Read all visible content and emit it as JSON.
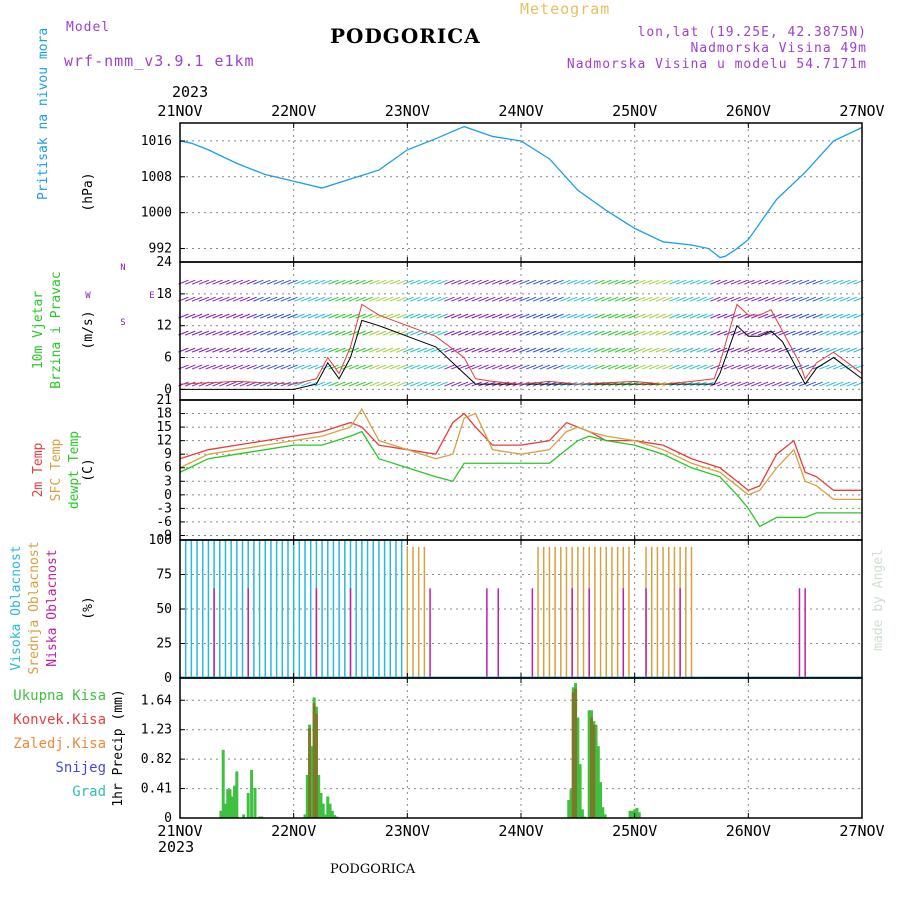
{
  "header": {
    "model_label": "Model",
    "model_name": "wrf-nmm_v3.9.1 e1km",
    "meteogram": "Meteogram",
    "station": "PODGORICA",
    "coords": "lon,lat (19.25E, 42.3875N)",
    "elevation": "Nadmorska Visina 49m",
    "model_elevation": "Nadmorska Visina u modelu 54.7171m",
    "year": "2023",
    "footer_station": "PODGORICA",
    "credit": "made by Angel"
  },
  "colors": {
    "pressure": "#1aa0e8",
    "temp2m": "#e83c3c",
    "sfc_temp": "#d8a040",
    "dewpt": "#28c828",
    "high_cloud": "#28b8e0",
    "mid_cloud": "#d8a040",
    "low_cloud": "#c020a0",
    "total_precip": "#40c040",
    "conv_precip": "#e84040",
    "frozen_precip": "#f08838",
    "snow": "#4848e0",
    "graupel": "#30c0b0",
    "wind": "#8020c0"
  },
  "chart_data": [
    {
      "type": "line",
      "panel": "pressure",
      "ylabel_side": "Pritisak na nivou mora",
      "ylabel": "(hPa)",
      "x_ticks": [
        "21NOV",
        "22NOV",
        "23NOV",
        "24NOV",
        "25NOV",
        "26NOV",
        "27NOV"
      ],
      "yticks": [
        992,
        1000,
        1008,
        1016
      ],
      "ylim": [
        989,
        1020
      ],
      "grid": true,
      "x_days": [
        0,
        0.1,
        0.25,
        0.5,
        0.75,
        1.0,
        1.25,
        1.5,
        1.75,
        2.0,
        2.25,
        2.5,
        2.75,
        3.0,
        3.25,
        3.5,
        3.75,
        4.0,
        4.25,
        4.5,
        4.65,
        4.75,
        4.8,
        4.9,
        5.0,
        5.25,
        5.5,
        5.75,
        6.0
      ],
      "series": [
        {
          "values": [
            1016,
            1015.5,
            1014,
            1011,
            1008.5,
            1007,
            1005.5,
            1007.5,
            1009.5,
            1014,
            1016.5,
            1019.2,
            1017,
            1016,
            1012,
            1005,
            1000.5,
            996.5,
            993.5,
            992.8,
            992,
            990,
            990.3,
            992,
            994,
            1003,
            1009,
            1016,
            1019
          ]
        }
      ]
    },
    {
      "type": "line",
      "panel": "wind",
      "ylabel_side": [
        "10m Vjetar",
        "Brzina i Pravac"
      ],
      "ylabel": "(m/s)",
      "compass": [
        "N",
        "E",
        "W",
        "S"
      ],
      "yticks": [
        0,
        6,
        12,
        18,
        24
      ],
      "ylim": [
        -2,
        24
      ],
      "x_days": [
        0,
        0.5,
        1.0,
        1.2,
        1.3,
        1.4,
        1.5,
        1.6,
        1.75,
        2.0,
        2.25,
        2.5,
        2.6,
        2.75,
        3.0,
        3.25,
        3.5,
        4.0,
        4.25,
        4.5,
        4.7,
        4.75,
        4.9,
        5.0,
        5.1,
        5.2,
        5.3,
        5.45,
        5.5,
        5.6,
        5.75,
        6.0
      ],
      "series": [
        {
          "values": [
            0,
            0,
            0,
            1,
            5,
            2,
            6,
            13,
            12,
            10,
            8,
            3,
            1,
            1,
            1,
            1,
            1,
            1,
            1,
            1,
            1,
            3,
            12,
            10,
            10,
            11,
            9,
            3,
            1,
            4,
            6,
            2
          ]
        },
        {
          "values": [
            1,
            1.5,
            1,
            2,
            6,
            3,
            8,
            16,
            14,
            12,
            10,
            6,
            2,
            1.5,
            1,
            1.5,
            1,
            1.5,
            1,
            1.5,
            2,
            5,
            16,
            14,
            14,
            15,
            11,
            5,
            2,
            5,
            7,
            3
          ]
        }
      ]
    },
    {
      "type": "line",
      "panel": "temperature",
      "ylabel_side": [
        "2m Temp",
        "SFC Temp",
        "dewpt Temp"
      ],
      "ylabel": "(C)",
      "yticks": [
        -9,
        -6,
        -3,
        0,
        3,
        6,
        9,
        12,
        15,
        18,
        21
      ],
      "ylim": [
        -10,
        21
      ],
      "x_days": [
        0,
        0.25,
        0.5,
        0.75,
        1.0,
        1.25,
        1.5,
        1.6,
        1.75,
        2.0,
        2.25,
        2.4,
        2.5,
        2.6,
        2.75,
        3.0,
        3.25,
        3.4,
        3.5,
        3.6,
        3.75,
        4.0,
        4.25,
        4.5,
        4.75,
        4.9,
        5.0,
        5.1,
        5.25,
        5.4,
        5.5,
        5.6,
        5.75,
        6.0
      ],
      "series": [
        {
          "name": "2m Temp",
          "values": [
            8,
            10,
            11,
            12,
            13,
            14,
            16,
            15,
            11,
            10,
            9,
            16,
            18,
            15,
            11,
            11,
            12,
            16,
            15,
            14,
            12,
            12,
            11,
            8,
            6,
            3,
            1,
            2,
            9,
            12,
            5,
            4,
            1,
            1
          ]
        },
        {
          "name": "SFC Temp",
          "values": [
            6,
            9,
            10,
            11,
            12,
            13,
            15,
            19,
            12,
            10,
            8,
            9,
            17,
            18,
            10,
            9,
            10,
            14,
            15,
            14,
            13,
            12,
            10,
            7,
            5,
            2,
            0,
            1,
            6,
            10,
            3,
            2,
            -1,
            -1
          ]
        },
        {
          "name": "dewpt Temp",
          "values": [
            5,
            8,
            9,
            10,
            11,
            11,
            13,
            14,
            8,
            6,
            4,
            3,
            7,
            7,
            7,
            7,
            7,
            10,
            12,
            13,
            12,
            11,
            9,
            6,
            4,
            0,
            -3,
            -7,
            -5,
            -5,
            -5,
            -4,
            -4,
            -4
          ]
        }
      ]
    },
    {
      "type": "bar",
      "panel": "cloud",
      "ylabel_side": [
        "Visoka Oblacnost",
        "Srednja Oblacnost",
        "Niska Oblacnost"
      ],
      "ylabel": "(%)",
      "yticks": [
        0,
        25,
        50,
        75,
        100
      ],
      "ylim": [
        0,
        100
      ],
      "series": [
        {
          "name": "Visoka Oblacnost",
          "days": [
            0.05,
            0.1,
            0.15,
            0.2,
            0.25,
            0.3,
            0.35,
            0.4,
            0.45,
            0.5,
            0.55,
            0.6,
            0.65,
            0.7,
            0.75,
            0.8,
            0.85,
            0.9,
            0.95,
            1.0,
            1.05,
            1.1,
            1.15,
            1.2,
            1.25,
            1.3,
            1.35,
            1.4,
            1.45,
            1.5,
            1.55,
            1.6,
            1.65,
            1.7,
            1.75,
            1.8,
            1.85,
            1.9,
            1.95
          ],
          "value": 100
        },
        {
          "name": "Srednja Oblacnost",
          "days": [
            2.0,
            2.05,
            2.1,
            2.15,
            3.15,
            3.2,
            3.25,
            3.3,
            3.35,
            3.4,
            3.45,
            3.5,
            3.55,
            3.6,
            3.65,
            3.7,
            3.75,
            3.8,
            3.85,
            3.9,
            3.95,
            4.1,
            4.15,
            4.2,
            4.25,
            4.3,
            4.35,
            4.4,
            4.45,
            4.5
          ],
          "value": 95
        },
        {
          "name": "Niska Oblacnost",
          "days": [
            0.3,
            0.6,
            1.2,
            1.5,
            2.2,
            2.7,
            2.8,
            3.1,
            3.45,
            3.6,
            3.9,
            4.1,
            4.4,
            5.45,
            5.5
          ],
          "value": 65
        }
      ]
    },
    {
      "type": "bar",
      "panel": "precipitation",
      "ylabel_side": [
        "Ukupna Kisa",
        "Konvek.Kisa",
        "Zaledj.Kisa",
        "Snijeg",
        "Grad"
      ],
      "ylabel": "1hr Precip (mm)",
      "yticks": [
        0,
        0.41,
        0.82,
        1.23,
        1.64
      ],
      "ylim": [
        0,
        1.95
      ],
      "x_ticks": [
        "21NOV",
        "22NOV",
        "23NOV",
        "24NOV",
        "25NOV",
        "26NOV",
        "27NOV"
      ],
      "series": [
        {
          "name": "Ukupna Kisa",
          "days": [
            0.36,
            0.38,
            0.4,
            0.42,
            0.44,
            0.46,
            0.48,
            0.5,
            0.56,
            0.6,
            0.63,
            0.66,
            0.7,
            0.72,
            1.1,
            1.12,
            1.14,
            1.16,
            1.18,
            1.2,
            1.22,
            1.24,
            1.26,
            1.28,
            1.3,
            1.32,
            1.34,
            1.36,
            1.38,
            3.42,
            3.44,
            3.46,
            3.48,
            3.5,
            3.52,
            3.54,
            3.56,
            3.6,
            3.62,
            3.64,
            3.66,
            3.68,
            3.7,
            3.72,
            3.74,
            3.96,
            3.98,
            4.0,
            4.02,
            4.04
          ],
          "values": [
            0.1,
            0.95,
            0.2,
            0.4,
            0.4,
            0.3,
            0.45,
            0.65,
            0.05,
            0.35,
            0.67,
            0.42,
            0.02,
            0.02,
            0.05,
            0.6,
            1.3,
            1.0,
            1.68,
            1.55,
            0.6,
            0.35,
            0.2,
            0.05,
            0.3,
            0.2,
            0.1,
            0.04,
            0.02,
            0.25,
            0.4,
            1.82,
            1.88,
            1.4,
            0.75,
            0.12,
            0.02,
            1.5,
            1.5,
            1.35,
            1.3,
            1.0,
            0.5,
            0.15,
            0.05,
            0.1,
            0.1,
            0.12,
            0.14,
            0.08
          ]
        },
        {
          "name": "Konvek.Kisa",
          "days": [
            1.14,
            1.18,
            1.2,
            3.46,
            3.48,
            3.62,
            3.64
          ],
          "values": [
            1.25,
            1.6,
            1.45,
            1.75,
            1.8,
            1.4,
            1.3
          ]
        }
      ]
    }
  ]
}
